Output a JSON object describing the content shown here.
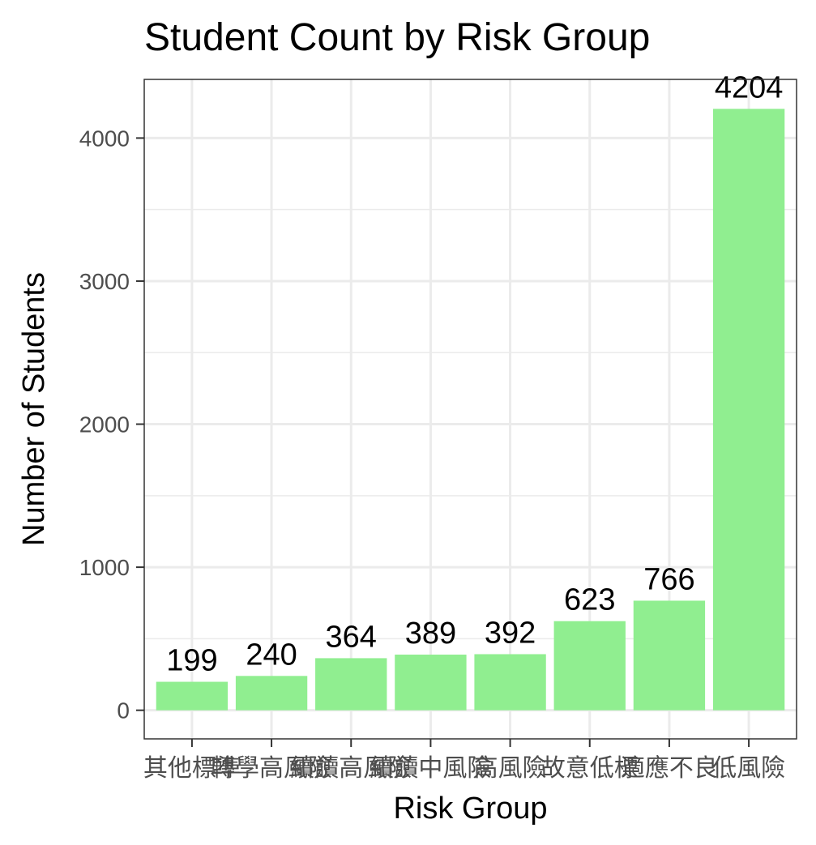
{
  "chart_data": {
    "type": "bar",
    "title": "Student Count by Risk Group",
    "xlabel": "Risk Group",
    "ylabel": "Number of Students",
    "categories": [
      "其他標準",
      "轉學高風險",
      "續讀高風險",
      "續讀中風險",
      "高風險",
      "故意低標",
      "適應不良",
      "低風險"
    ],
    "values": [
      199,
      240,
      364,
      389,
      392,
      623,
      766,
      4204
    ],
    "ylim": [
      -200,
      4410
    ],
    "yticks": [
      0,
      1000,
      2000,
      3000,
      4000
    ],
    "bar_color": "#90ee90",
    "grid": true,
    "legend": "none"
  }
}
